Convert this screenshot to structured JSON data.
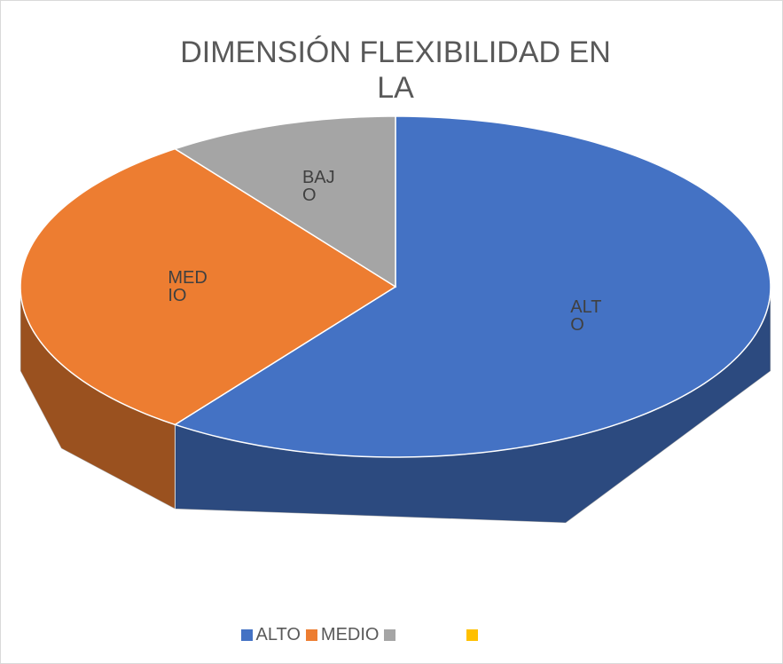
{
  "chart_data": {
    "type": "pie3d",
    "title": "DIMENSIÓN FLEXIBILIDAD EN LA",
    "categories": [
      "ALTO",
      "MEDIO",
      "BAJO",
      null
    ],
    "legend_labels": [
      "ALTO",
      "MEDIO",
      null,
      null
    ],
    "values": [
      60,
      30,
      10,
      0
    ],
    "colors": [
      "#4472c4",
      "#ed7d31",
      "#a5a5a5",
      "#ffc000"
    ],
    "legend": "bottom"
  }
}
